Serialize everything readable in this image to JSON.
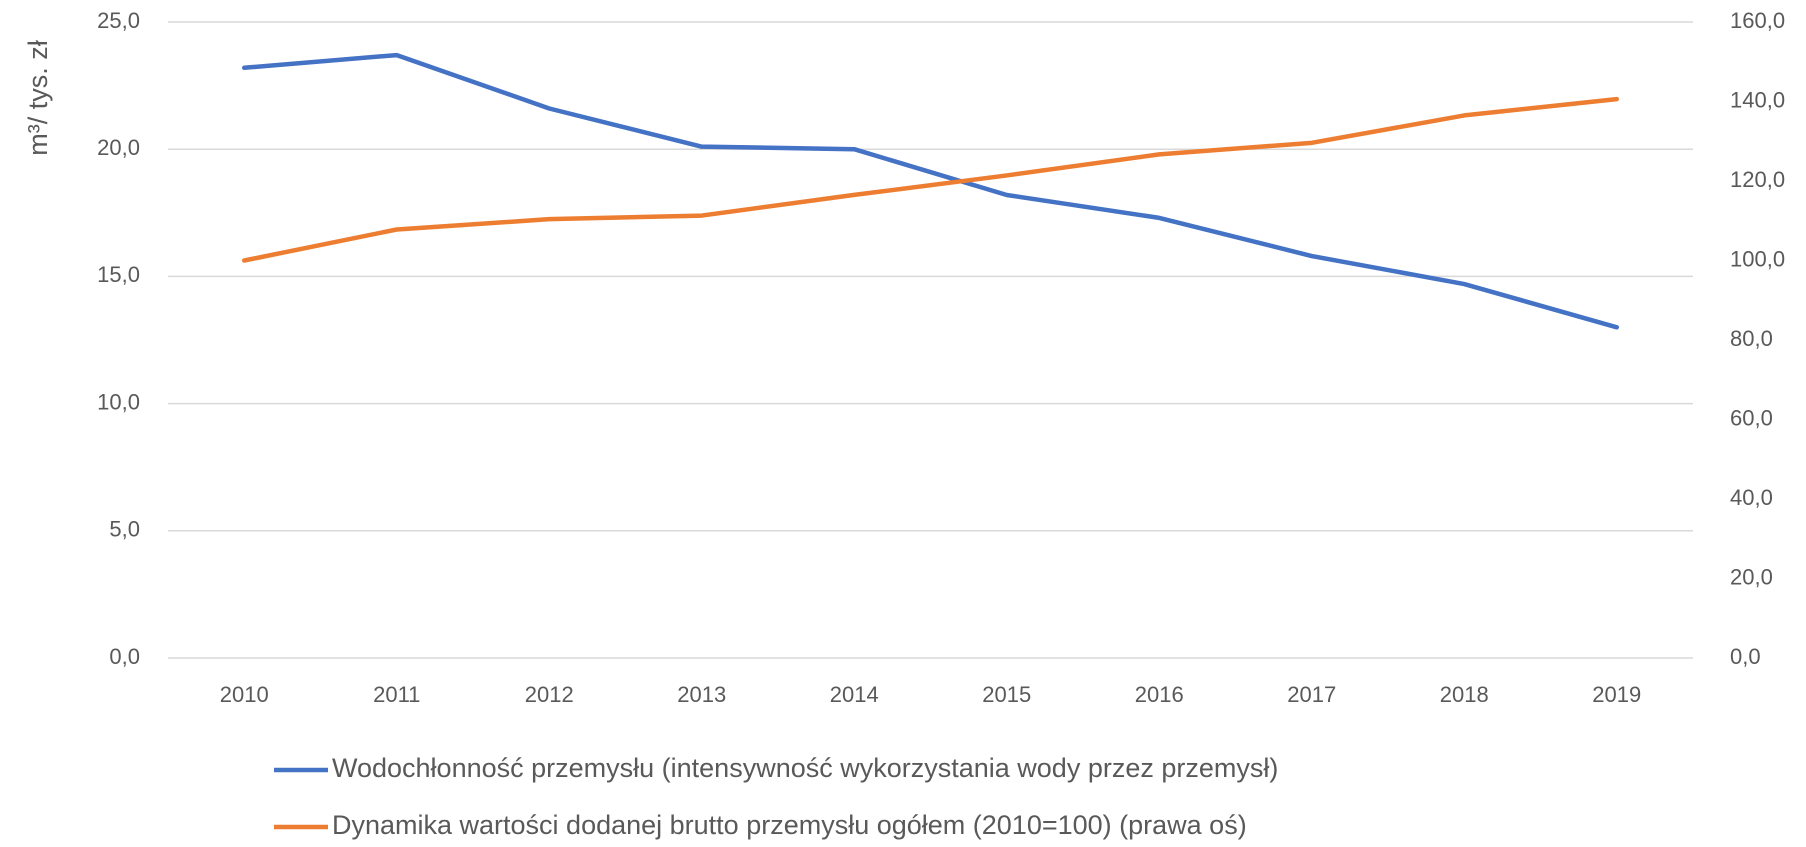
{
  "chart_data": {
    "type": "line",
    "y_label": "m³/ tys. zł",
    "categories": [
      "2010",
      "2011",
      "2012",
      "2013",
      "2014",
      "2015",
      "2016",
      "2017",
      "2018",
      "2019"
    ],
    "series": [
      {
        "name": "Wodochłonność przemysłu (intensywność wykorzystania wody przez przemysł)",
        "color": "#4472c4",
        "axis": "y",
        "values": [
          23.2,
          23.7,
          21.6,
          20.1,
          20.0,
          18.2,
          17.3,
          15.8,
          14.7,
          13.0
        ]
      },
      {
        "name": "Dynamika wartości dodanej brutto przemysłu ogółem (2010=100) (prawa oś)",
        "color": "#ed7d31",
        "axis": "y2",
        "values": [
          100.0,
          107.8,
          110.4,
          111.3,
          116.5,
          121.4,
          126.7,
          129.6,
          136.5,
          140.6
        ]
      }
    ],
    "ylim": [
      0,
      25
    ],
    "yticks": [
      {
        "value": 0,
        "label": "0,0"
      },
      {
        "value": 5,
        "label": "5,0"
      },
      {
        "value": 10,
        "label": "10,0"
      },
      {
        "value": 15,
        "label": "15,0"
      },
      {
        "value": 20,
        "label": "20,0"
      },
      {
        "value": 25,
        "label": "25,0"
      }
    ],
    "y2lim": [
      0,
      160
    ],
    "y2ticks": [
      {
        "value": 0,
        "label": "0,0"
      },
      {
        "value": 20,
        "label": "20,0"
      },
      {
        "value": 40,
        "label": "40,0"
      },
      {
        "value": 60,
        "label": "60,0"
      },
      {
        "value": 80,
        "label": "80,0"
      },
      {
        "value": 100,
        "label": "100,0"
      },
      {
        "value": 120,
        "label": "120,0"
      },
      {
        "value": 140,
        "label": "140,0"
      },
      {
        "value": 160,
        "label": "160,0"
      }
    ],
    "grid": true,
    "legend": "bottom"
  }
}
